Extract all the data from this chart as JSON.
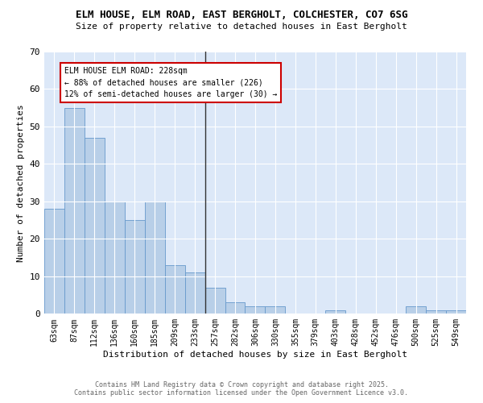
{
  "title": "ELM HOUSE, ELM ROAD, EAST BERGHOLT, COLCHESTER, CO7 6SG",
  "subtitle": "Size of property relative to detached houses in East Bergholt",
  "xlabel": "Distribution of detached houses by size in East Bergholt",
  "ylabel": "Number of detached properties",
  "bin_labels": [
    "63sqm",
    "87sqm",
    "112sqm",
    "136sqm",
    "160sqm",
    "185sqm",
    "209sqm",
    "233sqm",
    "257sqm",
    "282sqm",
    "306sqm",
    "330sqm",
    "355sqm",
    "379sqm",
    "403sqm",
    "428sqm",
    "452sqm",
    "476sqm",
    "500sqm",
    "525sqm",
    "549sqm"
  ],
  "bar_heights": [
    28,
    55,
    47,
    30,
    25,
    30,
    13,
    11,
    7,
    3,
    2,
    2,
    0,
    0,
    1,
    0,
    0,
    0,
    2,
    1,
    1
  ],
  "bar_color": "#b8cfe8",
  "bar_edge_color": "#6699cc",
  "marker_label": "ELM HOUSE ELM ROAD: 228sqm",
  "annotation_line1": "← 88% of detached houses are smaller (226)",
  "annotation_line2": "12% of semi-detached houses are larger (30) →",
  "vline_color": "#333333",
  "background_color": "#ffffff",
  "plot_bg_color": "#dce8f8",
  "grid_color": "#ffffff",
  "ylim": [
    0,
    70
  ],
  "yticks": [
    0,
    10,
    20,
    30,
    40,
    50,
    60,
    70
  ],
  "footer_line1": "Contains HM Land Registry data © Crown copyright and database right 2025.",
  "footer_line2": "Contains public sector information licensed under the Open Government Licence v3.0."
}
